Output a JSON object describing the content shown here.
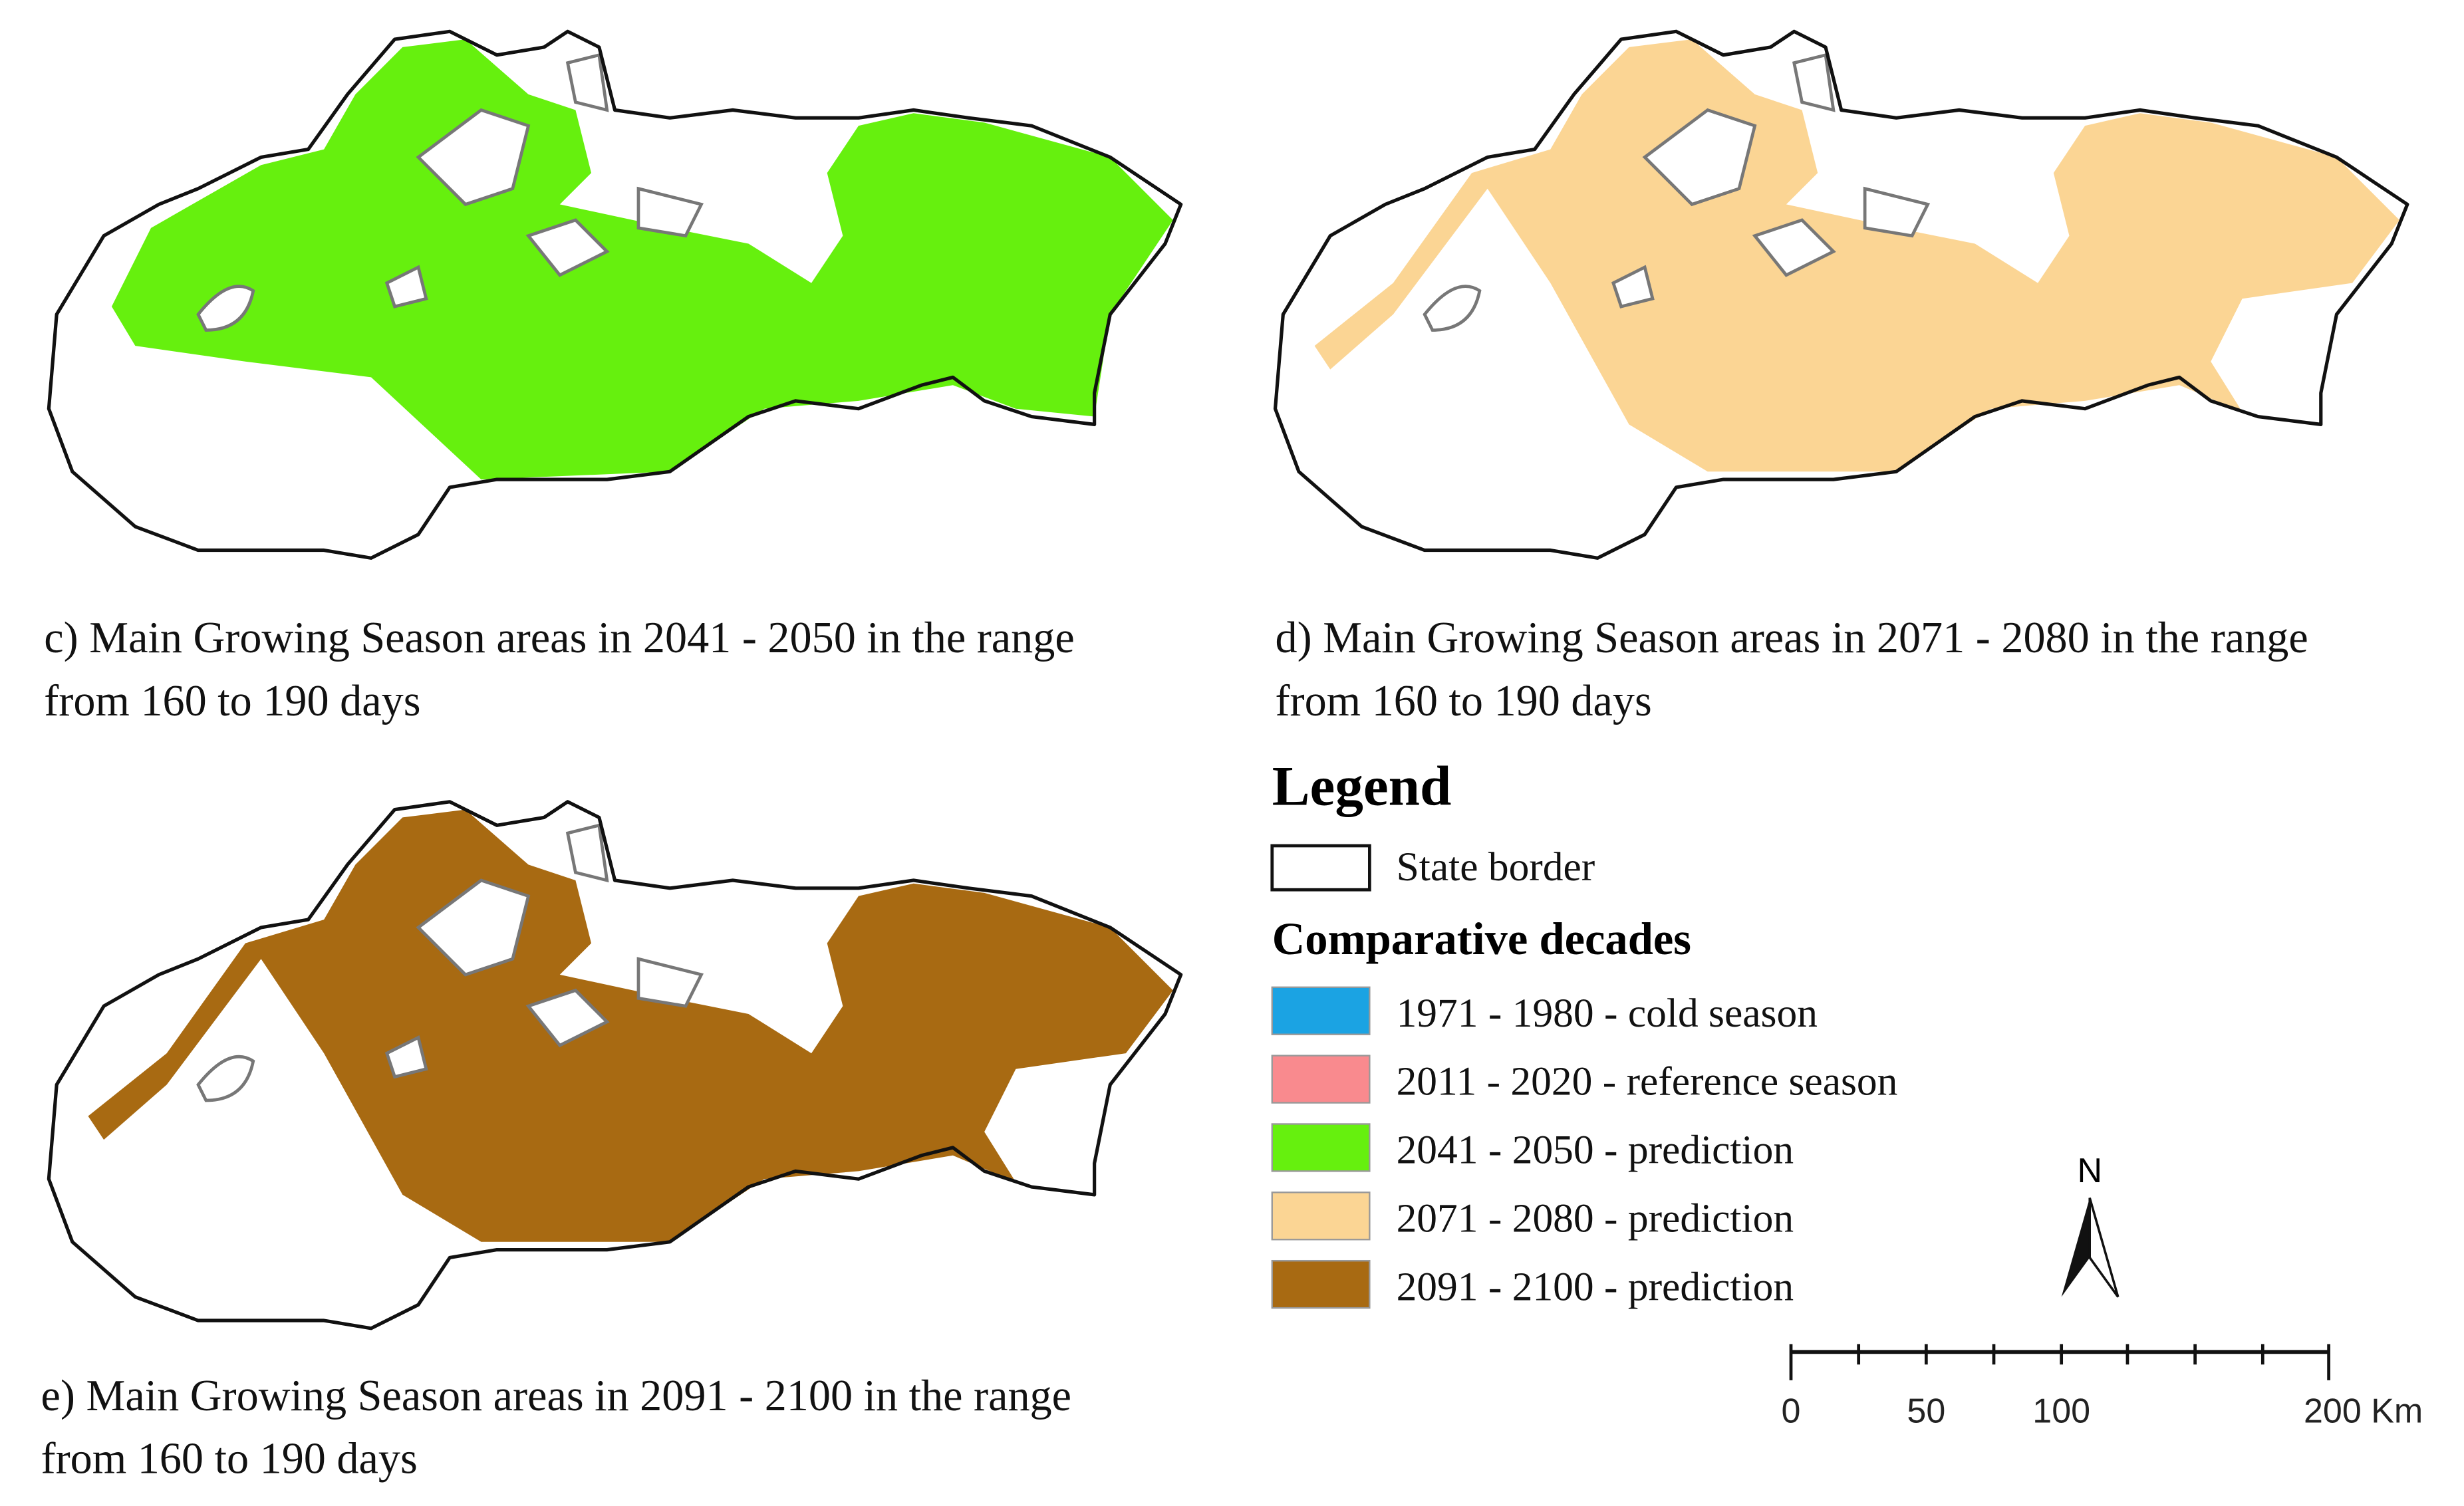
{
  "panels": [
    {
      "caption_lines": [
        "c) Main Growing Season areas in 2041 - 2050 in the range",
        "from 160 to 190 days"
      ]
    },
    {
      "caption_lines": [
        "d) Main Growing Season areas in 2071 - 2080 in the range",
        "from 160 to 190 days"
      ]
    },
    {
      "caption_lines": [
        "e) Main Growing Season areas in 2091 - 2100 in the range",
        "from 160 to 190 days"
      ]
    }
  ],
  "legend": {
    "title": "Legend",
    "state_border": "State border",
    "subtitle": "Comparative decades",
    "items": [
      {
        "label": "1971 - 1980 - cold season",
        "color": "#1ba3e3"
      },
      {
        "label": "2011 - 2020 - reference season",
        "color": "#f98a8e"
      },
      {
        "label": "2041 - 2050 - prediction",
        "color": "#66f00e"
      },
      {
        "label": "2071 - 2080 - prediction",
        "color": "#fbd594"
      },
      {
        "label": "2091 - 2100 - prediction",
        "color": "#a86a12"
      }
    ]
  },
  "north": "N",
  "scale_bar": {
    "ticks": [
      "0",
      "50",
      "100",
      "200 Km"
    ]
  }
}
